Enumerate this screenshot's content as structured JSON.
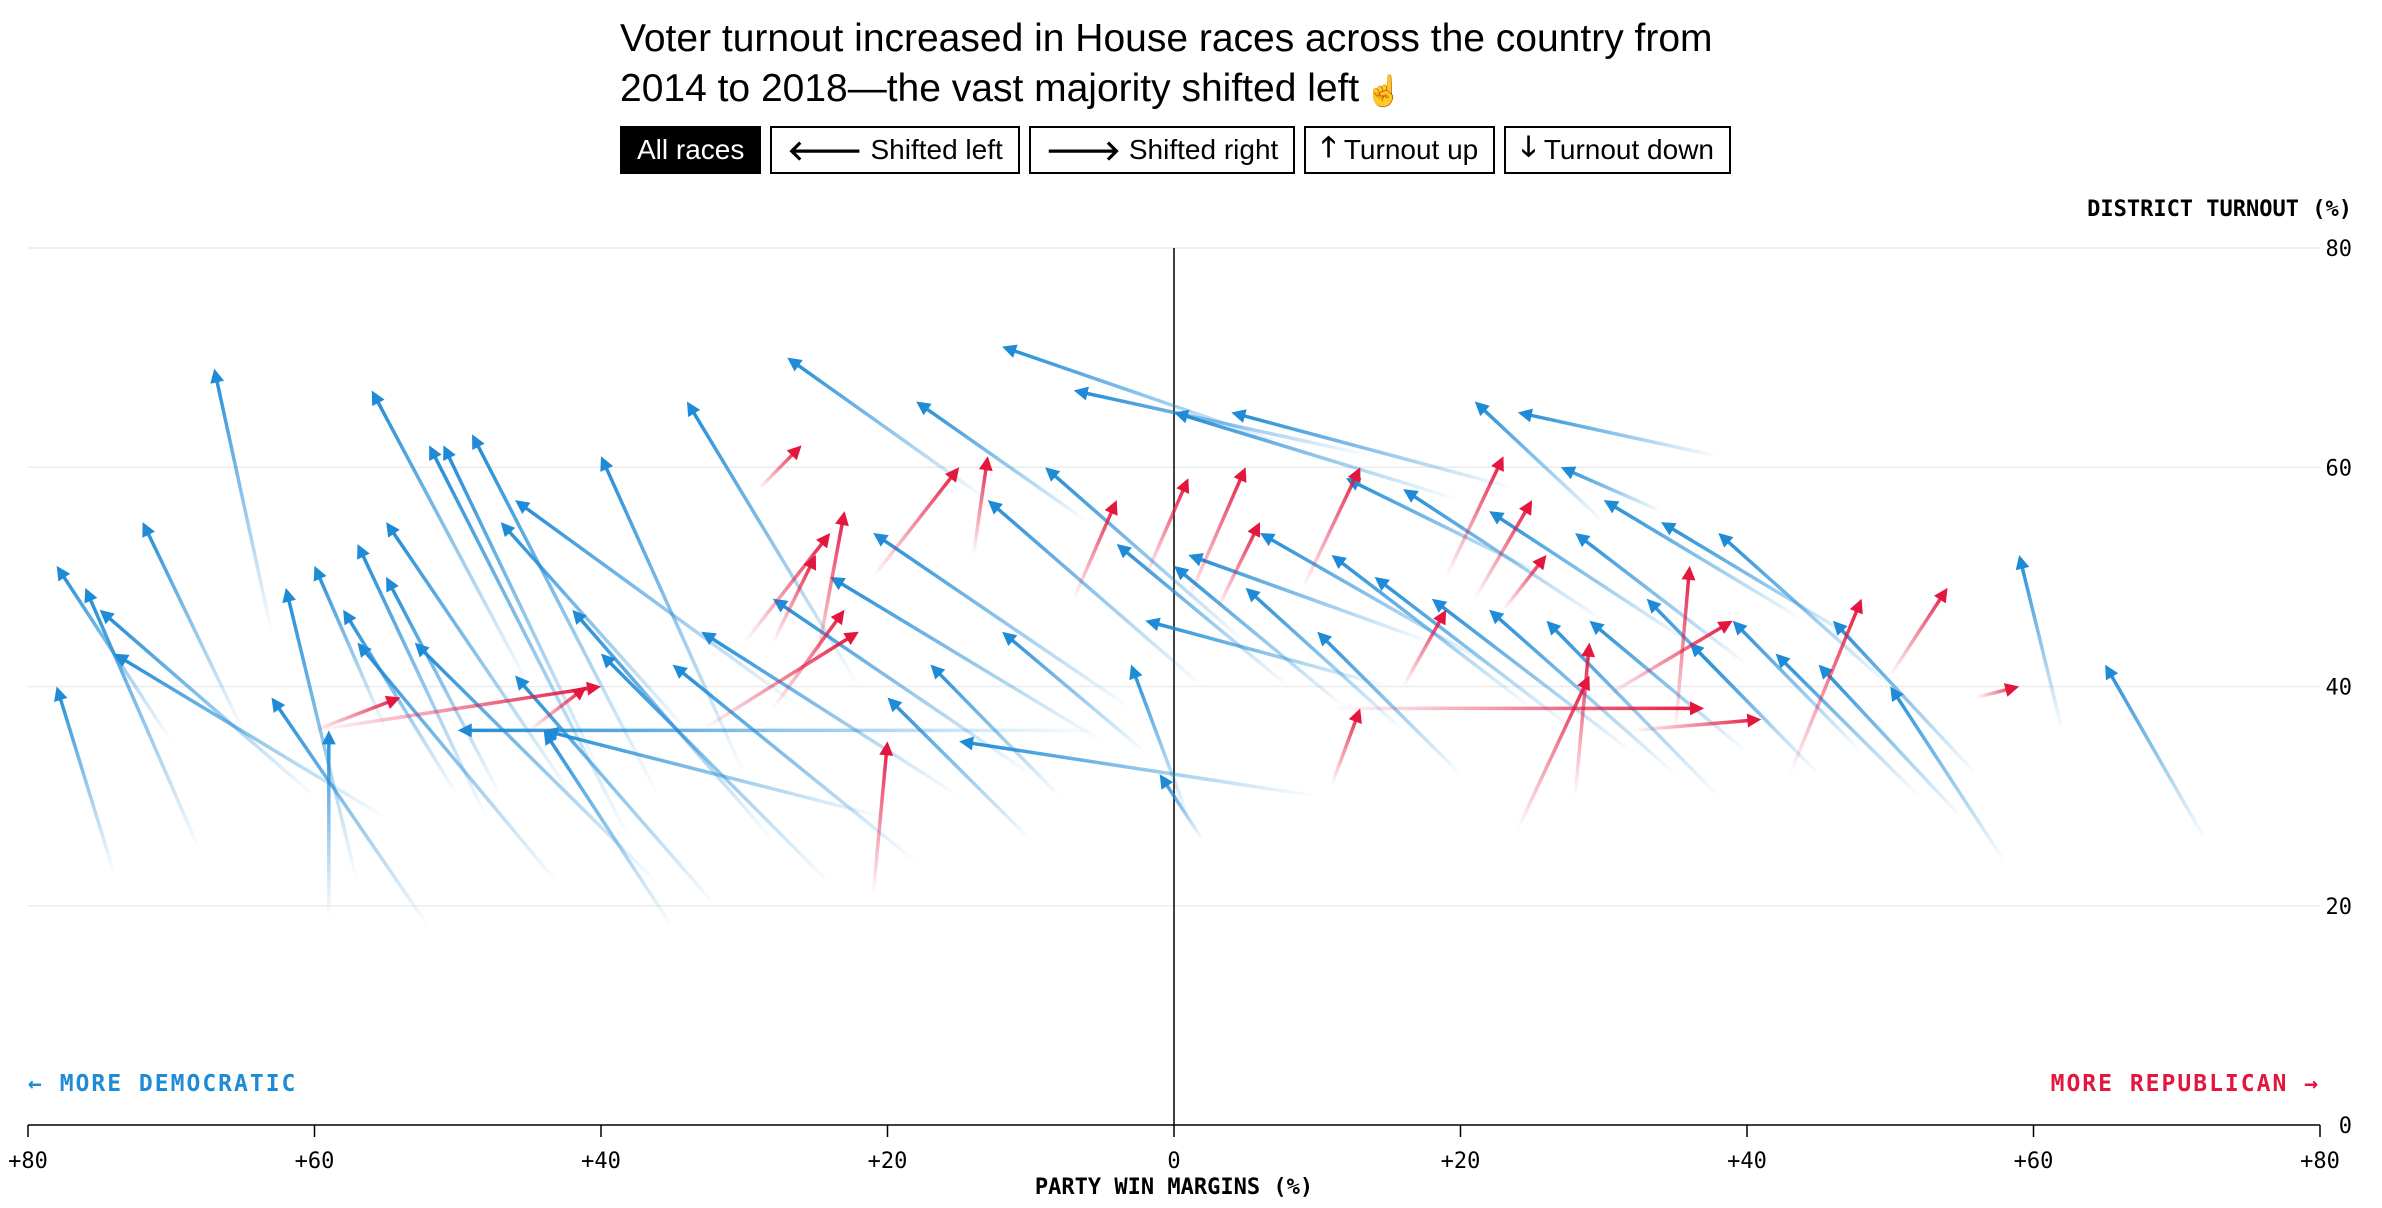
{
  "headline": {
    "line1": "Voter turnout increased in House races across the country from",
    "line2": "2014 to 2018—the vast majority shifted left",
    "pointer_icon": "hand-pointer-icon"
  },
  "filters": [
    {
      "label": "All races",
      "icon": "",
      "active": true
    },
    {
      "label": "Shifted left",
      "icon": "🡐",
      "active": false
    },
    {
      "label": "Shifted right",
      "icon": "🡒",
      "active": false
    },
    {
      "label": "Turnout up",
      "icon": "🡑",
      "active": false
    },
    {
      "label": "Turnout down",
      "icon": "🡓",
      "active": false
    }
  ],
  "colors": {
    "left": "#1f8bd6",
    "right": "#e3173e",
    "axis": "#000000",
    "grid": "#ececec"
  },
  "chart_data": {
    "type": "scatter",
    "xlabel": "PARTY WIN MARGINS (%)",
    "ylabel": "DISTRICT TURNOUT (%)",
    "xlim": [
      -80,
      80
    ],
    "ylim": [
      0,
      80
    ],
    "x_ticks": [
      "+80",
      "+60",
      "+40",
      "+20",
      "0",
      "+20",
      "+40",
      "+60",
      "+80"
    ],
    "y_ticks": [
      "0",
      "20",
      "40",
      "60",
      "80"
    ],
    "annotation_left": "← MORE DEMOCRATIC",
    "annotation_right": "MORE REPUBLICAN →",
    "grid": true,
    "arrows_from_2014_to_2018": [
      {
        "x0": -74,
        "y0": 23,
        "x1": -78,
        "y1": 40,
        "dir": "left"
      },
      {
        "x0": -70,
        "y0": 35,
        "x1": -78,
        "y1": 51,
        "dir": "left"
      },
      {
        "x0": -68,
        "y0": 25,
        "x1": -76,
        "y1": 49,
        "dir": "left"
      },
      {
        "x0": -65,
        "y0": 36,
        "x1": -72,
        "y1": 55,
        "dir": "left"
      },
      {
        "x0": -63,
        "y0": 45,
        "x1": -67,
        "y1": 69,
        "dir": "left"
      },
      {
        "x0": -60,
        "y0": 30,
        "x1": -75,
        "y1": 47,
        "dir": "left"
      },
      {
        "x0": -55,
        "y0": 28,
        "x1": -74,
        "y1": 43,
        "dir": "left"
      },
      {
        "x0": -59,
        "y0": 19,
        "x1": -59,
        "y1": 36,
        "dir": "left"
      },
      {
        "x0": -57,
        "y0": 22,
        "x1": -62,
        "y1": 49,
        "dir": "left"
      },
      {
        "x0": -55,
        "y0": 36,
        "x1": -60,
        "y1": 51,
        "dir": "left"
      },
      {
        "x0": -52,
        "y0": 18,
        "x1": -63,
        "y1": 39,
        "dir": "left"
      },
      {
        "x0": -50,
        "y0": 30,
        "x1": -58,
        "y1": 47,
        "dir": "left"
      },
      {
        "x0": -48,
        "y0": 28,
        "x1": -57,
        "y1": 53,
        "dir": "left"
      },
      {
        "x0": -45,
        "y0": 40,
        "x1": -56,
        "y1": 67,
        "dir": "left"
      },
      {
        "x0": -47,
        "y0": 30,
        "x1": -55,
        "y1": 50,
        "dir": "left"
      },
      {
        "x0": -43,
        "y0": 22,
        "x1": -57,
        "y1": 44,
        "dir": "left"
      },
      {
        "x0": -42,
        "y0": 30,
        "x1": -55,
        "y1": 55,
        "dir": "left"
      },
      {
        "x0": -40,
        "y0": 32,
        "x1": -51,
        "y1": 62,
        "dir": "left"
      },
      {
        "x0": -38,
        "y0": 26,
        "x1": -52,
        "y1": 62,
        "dir": "left"
      },
      {
        "x0": -36,
        "y0": 30,
        "x1": -49,
        "y1": 63,
        "dir": "left"
      },
      {
        "x0": -35,
        "y0": 18,
        "x1": -44,
        "y1": 36,
        "dir": "left"
      },
      {
        "x0": -34,
        "y0": 36,
        "x1": -47,
        "y1": 55,
        "dir": "left"
      },
      {
        "x0": -30,
        "y0": 32,
        "x1": -40,
        "y1": 61,
        "dir": "left"
      },
      {
        "x0": -26,
        "y0": 38,
        "x1": -46,
        "y1": 57,
        "dir": "left"
      },
      {
        "x0": -22,
        "y0": 40,
        "x1": -34,
        "y1": 66,
        "dir": "left"
      },
      {
        "x0": -13,
        "y0": 57,
        "x1": -27,
        "y1": 70,
        "dir": "left"
      },
      {
        "x0": -6,
        "y0": 55,
        "x1": -18,
        "y1": 66,
        "dir": "left"
      },
      {
        "x0": 8,
        "y0": 62,
        "x1": -12,
        "y1": 71,
        "dir": "left"
      },
      {
        "x0": 14,
        "y0": 61,
        "x1": -7,
        "y1": 67,
        "dir": "left"
      },
      {
        "x0": 20,
        "y0": 57,
        "x1": 0,
        "y1": 65,
        "dir": "left"
      },
      {
        "x0": 24,
        "y0": 58,
        "x1": 4,
        "y1": 65,
        "dir": "left"
      },
      {
        "x0": 38,
        "y0": 61,
        "x1": 24,
        "y1": 65,
        "dir": "left"
      },
      {
        "x0": 30,
        "y0": 55,
        "x1": 21,
        "y1": 66,
        "dir": "left"
      },
      {
        "x0": 34,
        "y0": 56,
        "x1": 27,
        "y1": 60,
        "dir": "left"
      },
      {
        "x0": -5,
        "y0": 36,
        "x1": -50,
        "y1": 36,
        "dir": "left"
      },
      {
        "x0": -20,
        "y0": 28,
        "x1": -44,
        "y1": 36,
        "dir": "left"
      },
      {
        "x0": -15,
        "y0": 30,
        "x1": -33,
        "y1": 45,
        "dir": "left"
      },
      {
        "x0": -10,
        "y0": 32,
        "x1": -28,
        "y1": 48,
        "dir": "left"
      },
      {
        "x0": -5,
        "y0": 35,
        "x1": -24,
        "y1": 50,
        "dir": "left"
      },
      {
        "x0": -3,
        "y0": 38,
        "x1": -21,
        "y1": 54,
        "dir": "left"
      },
      {
        "x0": 2,
        "y0": 40,
        "x1": -13,
        "y1": 57,
        "dir": "left"
      },
      {
        "x0": 5,
        "y0": 44,
        "x1": -9,
        "y1": 60,
        "dir": "left"
      },
      {
        "x0": 10,
        "y0": 30,
        "x1": -15,
        "y1": 35,
        "dir": "left"
      },
      {
        "x0": 2,
        "y0": 26,
        "x1": -1,
        "y1": 32,
        "dir": "left"
      },
      {
        "x0": 1,
        "y0": 28,
        "x1": -3,
        "y1": 42,
        "dir": "left"
      },
      {
        "x0": 15,
        "y0": 40,
        "x1": -2,
        "y1": 46,
        "dir": "left"
      },
      {
        "x0": 18,
        "y0": 44,
        "x1": 1,
        "y1": 52,
        "dir": "left"
      },
      {
        "x0": 22,
        "y0": 42,
        "x1": 6,
        "y1": 54,
        "dir": "left"
      },
      {
        "x0": 25,
        "y0": 38,
        "x1": 11,
        "y1": 52,
        "dir": "left"
      },
      {
        "x0": 28,
        "y0": 36,
        "x1": 14,
        "y1": 50,
        "dir": "left"
      },
      {
        "x0": 32,
        "y0": 34,
        "x1": 18,
        "y1": 48,
        "dir": "left"
      },
      {
        "x0": 35,
        "y0": 32,
        "x1": 22,
        "y1": 47,
        "dir": "left"
      },
      {
        "x0": 38,
        "y0": 30,
        "x1": 26,
        "y1": 46,
        "dir": "left"
      },
      {
        "x0": 40,
        "y0": 34,
        "x1": 29,
        "y1": 46,
        "dir": "left"
      },
      {
        "x0": 42,
        "y0": 36,
        "x1": 33,
        "y1": 48,
        "dir": "left"
      },
      {
        "x0": 45,
        "y0": 32,
        "x1": 36,
        "y1": 44,
        "dir": "left"
      },
      {
        "x0": 48,
        "y0": 34,
        "x1": 39,
        "y1": 46,
        "dir": "left"
      },
      {
        "x0": 52,
        "y0": 30,
        "x1": 42,
        "y1": 43,
        "dir": "left"
      },
      {
        "x0": 55,
        "y0": 28,
        "x1": 45,
        "y1": 42,
        "dir": "left"
      },
      {
        "x0": 58,
        "y0": 24,
        "x1": 50,
        "y1": 40,
        "dir": "left"
      },
      {
        "x0": 56,
        "y0": 32,
        "x1": 46,
        "y1": 46,
        "dir": "left"
      },
      {
        "x0": 50,
        "y0": 40,
        "x1": 38,
        "y1": 54,
        "dir": "left"
      },
      {
        "x0": 48,
        "y0": 44,
        "x1": 34,
        "y1": 55,
        "dir": "left"
      },
      {
        "x0": 44,
        "y0": 46,
        "x1": 30,
        "y1": 57,
        "dir": "left"
      },
      {
        "x0": 62,
        "y0": 36,
        "x1": 59,
        "y1": 52,
        "dir": "left"
      },
      {
        "x0": 72,
        "y0": 26,
        "x1": 65,
        "y1": 42,
        "dir": "left"
      },
      {
        "x0": 20,
        "y0": 32,
        "x1": 10,
        "y1": 45,
        "dir": "left"
      },
      {
        "x0": 16,
        "y0": 36,
        "x1": 5,
        "y1": 49,
        "dir": "left"
      },
      {
        "x0": 12,
        "y0": 38,
        "x1": 0,
        "y1": 51,
        "dir": "left"
      },
      {
        "x0": 8,
        "y0": 40,
        "x1": -4,
        "y1": 53,
        "dir": "left"
      },
      {
        "x0": 30,
        "y0": 46,
        "x1": 16,
        "y1": 58,
        "dir": "left"
      },
      {
        "x0": 26,
        "y0": 50,
        "x1": 12,
        "y1": 59,
        "dir": "left"
      },
      {
        "x0": 36,
        "y0": 44,
        "x1": 22,
        "y1": 56,
        "dir": "left"
      },
      {
        "x0": 40,
        "y0": 42,
        "x1": 28,
        "y1": 54,
        "dir": "left"
      },
      {
        "x0": -18,
        "y0": 24,
        "x1": -35,
        "y1": 42,
        "dir": "left"
      },
      {
        "x0": -24,
        "y0": 22,
        "x1": -40,
        "y1": 43,
        "dir": "left"
      },
      {
        "x0": -28,
        "y0": 26,
        "x1": -42,
        "y1": 47,
        "dir": "left"
      },
      {
        "x0": -32,
        "y0": 20,
        "x1": -46,
        "y1": 41,
        "dir": "left"
      },
      {
        "x0": -36,
        "y0": 22,
        "x1": -53,
        "y1": 44,
        "dir": "left"
      },
      {
        "x0": -10,
        "y0": 26,
        "x1": -20,
        "y1": 39,
        "dir": "left"
      },
      {
        "x0": -8,
        "y0": 30,
        "x1": -17,
        "y1": 42,
        "dir": "left"
      },
      {
        "x0": -2,
        "y0": 34,
        "x1": -12,
        "y1": 45,
        "dir": "left"
      },
      {
        "x0": -60,
        "y0": 36,
        "x1": -40,
        "y1": 40,
        "dir": "right"
      },
      {
        "x0": -60,
        "y0": 36,
        "x1": -54,
        "y1": 39,
        "dir": "right"
      },
      {
        "x0": -45,
        "y0": 36,
        "x1": -41,
        "y1": 40,
        "dir": "right"
      },
      {
        "x0": -21,
        "y0": 21,
        "x1": -20,
        "y1": 35,
        "dir": "right"
      },
      {
        "x0": -33,
        "y0": 36,
        "x1": -22,
        "y1": 45,
        "dir": "right"
      },
      {
        "x0": -28,
        "y0": 38,
        "x1": -23,
        "y1": 47,
        "dir": "right"
      },
      {
        "x0": -30,
        "y0": 44,
        "x1": -24,
        "y1": 54,
        "dir": "right"
      },
      {
        "x0": -29,
        "y0": 58,
        "x1": -26,
        "y1": 62,
        "dir": "right"
      },
      {
        "x0": -28,
        "y0": 44,
        "x1": -25,
        "y1": 52,
        "dir": "right"
      },
      {
        "x0": -25,
        "y0": 42,
        "x1": -23,
        "y1": 56,
        "dir": "right"
      },
      {
        "x0": -21,
        "y0": 50,
        "x1": -15,
        "y1": 60,
        "dir": "right"
      },
      {
        "x0": -14,
        "y0": 52,
        "x1": -13,
        "y1": 61,
        "dir": "right"
      },
      {
        "x0": -7,
        "y0": 48,
        "x1": -4,
        "y1": 57,
        "dir": "right"
      },
      {
        "x0": -2,
        "y0": 50,
        "x1": 1,
        "y1": 59,
        "dir": "right"
      },
      {
        "x0": 1,
        "y0": 48,
        "x1": 5,
        "y1": 60,
        "dir": "right"
      },
      {
        "x0": 3,
        "y0": 47,
        "x1": 6,
        "y1": 55,
        "dir": "right"
      },
      {
        "x0": 9,
        "y0": 49,
        "x1": 13,
        "y1": 60,
        "dir": "right"
      },
      {
        "x0": 11,
        "y0": 38,
        "x1": 37,
        "y1": 38,
        "dir": "right"
      },
      {
        "x0": 11,
        "y0": 31,
        "x1": 13,
        "y1": 38,
        "dir": "right"
      },
      {
        "x0": 16,
        "y0": 40,
        "x1": 19,
        "y1": 47,
        "dir": "right"
      },
      {
        "x0": 19,
        "y0": 50,
        "x1": 23,
        "y1": 61,
        "dir": "right"
      },
      {
        "x0": 21,
        "y0": 48,
        "x1": 25,
        "y1": 57,
        "dir": "right"
      },
      {
        "x0": 23,
        "y0": 47,
        "x1": 26,
        "y1": 52,
        "dir": "right"
      },
      {
        "x0": 24,
        "y0": 27,
        "x1": 29,
        "y1": 41,
        "dir": "right"
      },
      {
        "x0": 28,
        "y0": 30,
        "x1": 29,
        "y1": 44,
        "dir": "right"
      },
      {
        "x0": 30,
        "y0": 39,
        "x1": 39,
        "y1": 46,
        "dir": "right"
      },
      {
        "x0": 32,
        "y0": 36,
        "x1": 41,
        "y1": 37,
        "dir": "right"
      },
      {
        "x0": 35,
        "y0": 36,
        "x1": 36,
        "y1": 51,
        "dir": "right"
      },
      {
        "x0": 43,
        "y0": 32,
        "x1": 48,
        "y1": 48,
        "dir": "right"
      },
      {
        "x0": 50,
        "y0": 41,
        "x1": 54,
        "y1": 49,
        "dir": "right"
      },
      {
        "x0": 56,
        "y0": 39,
        "x1": 59,
        "y1": 40,
        "dir": "right"
      }
    ]
  }
}
